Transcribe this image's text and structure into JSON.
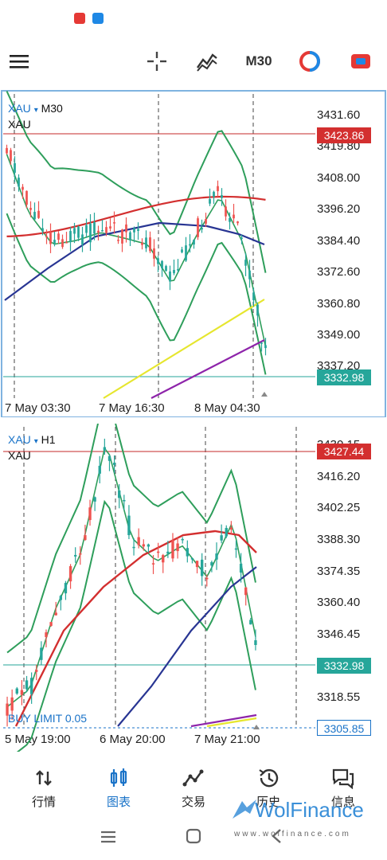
{
  "status_bar": {
    "icons": [
      "notification-app-icon-red",
      "notification-app-icon-blue"
    ]
  },
  "toolbar": {
    "timeframe": "M30",
    "icons": [
      "menu-icon",
      "crosshair-icon",
      "indicators-icon",
      "timeframe-selector",
      "objects-icon",
      "trade-icon"
    ]
  },
  "chart_top": {
    "symbol": "XAU",
    "timeframe": "M30",
    "subtitle": "XAU",
    "price_ticks": [
      "3431.60",
      "3419.80",
      "3408.00",
      "3396.20",
      "3384.40",
      "3372.60",
      "3360.80",
      "3349.00",
      "3337.20"
    ],
    "time_ticks": [
      "7 May 03:30",
      "7 May 16:30",
      "8 May 04:30"
    ],
    "ask_price": "3423.86",
    "bid_price": "3332.98"
  },
  "chart_bottom": {
    "symbol": "XAU",
    "timeframe": "H1",
    "subtitle": "XAU",
    "price_ticks": [
      "3430.15",
      "3416.20",
      "3402.25",
      "3388.30",
      "3374.35",
      "3360.40",
      "3346.45",
      "3318.55"
    ],
    "time_ticks": [
      "5 May 19:00",
      "6 May 20:00",
      "7 May 21:00"
    ],
    "ask_price": "3427.44",
    "bid_price": "3332.98",
    "order_label": "BUY LIMIT 0.05",
    "order_price": "3305.85"
  },
  "colors": {
    "bull_candle": "#26a69a",
    "bear_candle": "#ef5350",
    "ask_line": "#c62828",
    "bid_line": "#26a69a",
    "bollinger": "#2e9e5b",
    "ma_red": "#d32f2f",
    "ma_blue": "#283593",
    "ma_yellow": "#e6e62e",
    "ma_purple": "#8e24aa",
    "accent": "#1a73c8"
  },
  "bottom_nav": {
    "items": [
      {
        "label": "行情",
        "icon": "quotes-icon"
      },
      {
        "label": "图表",
        "icon": "chart-icon"
      },
      {
        "label": "交易",
        "icon": "trade-icon"
      },
      {
        "label": "历史",
        "icon": "history-icon"
      },
      {
        "label": "信息",
        "icon": "messages-icon"
      }
    ]
  },
  "watermark": {
    "brand": "WolFinance",
    "url": "www.wolfinance.com"
  }
}
